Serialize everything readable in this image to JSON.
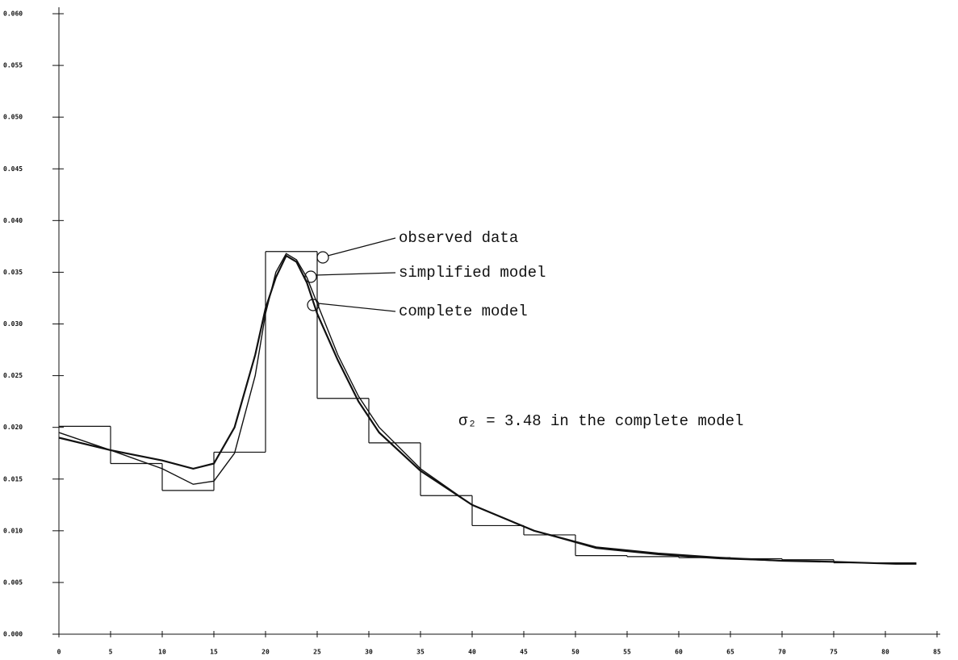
{
  "chart_data": {
    "type": "line",
    "xlim": [
      0,
      85
    ],
    "xticks": [
      0,
      5,
      10,
      15,
      20,
      25,
      30,
      35,
      40,
      45,
      50,
      55,
      60,
      65,
      70,
      75,
      80,
      85
    ],
    "ylim": [
      0,
      0.06
    ],
    "yticks": [
      {
        "value": 0,
        "label": "0.000"
      },
      0.005,
      {
        "value": 0.01,
        "label": "0.010"
      },
      0.015,
      {
        "value": 0.02,
        "label": "0.020"
      },
      0.025,
      {
        "value": 0.03,
        "label": "0.030"
      },
      0.035,
      {
        "value": 0.04,
        "label": "0.040"
      },
      0.045,
      {
        "value": 0.05,
        "label": "0.050"
      },
      0.055,
      {
        "value": 0.06,
        "label": "0.060"
      }
    ],
    "color": "#111111",
    "series": [
      {
        "name": "observed data",
        "bins": [
          0,
          5,
          10,
          15,
          20,
          25,
          30,
          35,
          40,
          45,
          50,
          55,
          60,
          65,
          70,
          75,
          83
        ],
        "values": [
          0.0201,
          0.0165,
          0.0139,
          0.0176,
          0.037,
          0.0228,
          0.0185,
          0.0134,
          0.0105,
          0.0096,
          0.0076,
          0.0075,
          0.0074,
          0.0073,
          0.0072,
          0.0069
        ]
      },
      {
        "name": "simplified model",
        "x": [
          0,
          5,
          10,
          13,
          15,
          17,
          19,
          20,
          21,
          22,
          23,
          24,
          25,
          27,
          29,
          31,
          35,
          40,
          46,
          52,
          58,
          64,
          70,
          75,
          81,
          83
        ],
        "values": [
          0.0195,
          0.0178,
          0.016,
          0.0145,
          0.0148,
          0.0175,
          0.025,
          0.031,
          0.035,
          0.0368,
          0.0362,
          0.0345,
          0.032,
          0.027,
          0.023,
          0.02,
          0.016,
          0.0125,
          0.01,
          0.0083,
          0.0077,
          0.0073,
          0.0071,
          0.007,
          0.0068,
          0.0068
        ]
      },
      {
        "name": "complete model",
        "x": [
          0,
          5,
          10,
          13,
          15,
          17,
          19,
          20,
          21,
          22,
          23,
          24,
          25,
          27,
          29,
          31,
          35,
          40,
          46,
          52,
          58,
          64,
          70,
          75,
          81,
          83
        ],
        "values": [
          0.019,
          0.0178,
          0.0168,
          0.016,
          0.0165,
          0.02,
          0.027,
          0.0315,
          0.0345,
          0.0366,
          0.036,
          0.034,
          0.031,
          0.0265,
          0.0225,
          0.0195,
          0.0158,
          0.0125,
          0.01,
          0.0084,
          0.0078,
          0.0074,
          0.0071,
          0.007,
          0.0068,
          0.0068
        ]
      }
    ],
    "annotations": [
      "σ₂ = 3.48 in the complete model"
    ]
  }
}
